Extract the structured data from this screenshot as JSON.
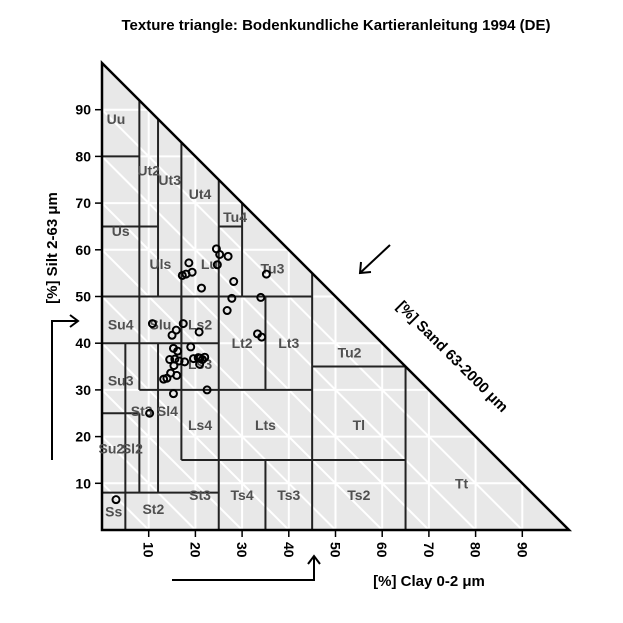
{
  "chart_data": {
    "type": "scatter",
    "title": "Texture triangle: Bodenkundliche Kartieranleitung 1994 (DE)",
    "xlabel": "[%] Clay 0-2 μm",
    "ylabel": "[%] Silt 2-63 μm",
    "zlabel": "[%] Sand 63-2000 μm",
    "xlim": [
      0,
      100
    ],
    "ylim": [
      0,
      100
    ],
    "x_ticks": [
      "10",
      "20",
      "30",
      "40",
      "50",
      "60",
      "70",
      "80",
      "90"
    ],
    "y_ticks": [
      "10",
      "20",
      "30",
      "40",
      "50",
      "60",
      "70",
      "80",
      "90"
    ],
    "grid": true,
    "classes": [
      {
        "label": "Uu",
        "clay": 3,
        "silt": 88
      },
      {
        "label": "Ut2",
        "clay": 10,
        "silt": 77
      },
      {
        "label": "Ut3",
        "clay": 14.5,
        "silt": 75
      },
      {
        "label": "Ut4",
        "clay": 21,
        "silt": 72
      },
      {
        "label": "Tu4",
        "clay": 28.5,
        "silt": 67
      },
      {
        "label": "Us",
        "clay": 4,
        "silt": 64
      },
      {
        "label": "Uls",
        "clay": 12.5,
        "silt": 57
      },
      {
        "label": "Lu",
        "clay": 23,
        "silt": 57
      },
      {
        "label": "Tu3",
        "clay": 36.5,
        "silt": 56
      },
      {
        "label": "Su4",
        "clay": 4,
        "silt": 44
      },
      {
        "label": "Slu",
        "clay": 12.5,
        "silt": 44
      },
      {
        "label": "Ls2",
        "clay": 21,
        "silt": 44
      },
      {
        "label": "Lt2",
        "clay": 30,
        "silt": 40
      },
      {
        "label": "Lt3",
        "clay": 40,
        "silt": 40
      },
      {
        "label": "Tu2",
        "clay": 53,
        "silt": 38
      },
      {
        "label": "Ls3",
        "clay": 21,
        "silt": 35.5
      },
      {
        "label": "Su3",
        "clay": 4,
        "silt": 32
      },
      {
        "label": "St3",
        "clay": 8.5,
        "silt": 25.5
      },
      {
        "label": "Sl4",
        "clay": 14,
        "silt": 25.5
      },
      {
        "label": "Ls4",
        "clay": 21,
        "silt": 22.5
      },
      {
        "label": "Lts",
        "clay": 35,
        "silt": 22.5
      },
      {
        "label": "Tl",
        "clay": 55,
        "silt": 22.5
      },
      {
        "label": "Su2",
        "clay": 2,
        "silt": 17.5
      },
      {
        "label": "Sl2",
        "clay": 6.5,
        "silt": 17.5
      },
      {
        "label": "Tt",
        "clay": 77,
        "silt": 10
      },
      {
        "label": "St3",
        "clay": 21,
        "silt": 7.5
      },
      {
        "label": "Ts4",
        "clay": 30,
        "silt": 7.5
      },
      {
        "label": "Ts3",
        "clay": 40,
        "silt": 7.5
      },
      {
        "label": "Ts2",
        "clay": 55,
        "silt": 7.5
      },
      {
        "label": "Ss",
        "clay": 2.5,
        "silt": 4
      },
      {
        "label": "St2",
        "clay": 11,
        "silt": 4.5
      }
    ],
    "points": [
      {
        "clay": 3,
        "silt": 6.5
      },
      {
        "clay": 10.2,
        "silt": 25
      },
      {
        "clay": 10.8,
        "silt": 44.2
      },
      {
        "clay": 13.2,
        "silt": 32.3
      },
      {
        "clay": 13.9,
        "silt": 32.5
      },
      {
        "clay": 14.7,
        "silt": 33.6
      },
      {
        "clay": 14.5,
        "silt": 36.5
      },
      {
        "clay": 15,
        "silt": 41.7
      },
      {
        "clay": 15.3,
        "silt": 38.9
      },
      {
        "clay": 15.6,
        "silt": 36.6
      },
      {
        "clay": 15.4,
        "silt": 35.2
      },
      {
        "clay": 15.3,
        "silt": 29.2
      },
      {
        "clay": 15.9,
        "silt": 42.8
      },
      {
        "clay": 16,
        "silt": 33.1
      },
      {
        "clay": 16.2,
        "silt": 38.3
      },
      {
        "clay": 16.5,
        "silt": 36.2
      },
      {
        "clay": 17.4,
        "silt": 44.2
      },
      {
        "clay": 17.7,
        "silt": 36
      },
      {
        "clay": 17.2,
        "silt": 54.5
      },
      {
        "clay": 18,
        "silt": 54.8
      },
      {
        "clay": 18.6,
        "silt": 57.2
      },
      {
        "clay": 19,
        "silt": 39.2
      },
      {
        "clay": 19.3,
        "silt": 55.2
      },
      {
        "clay": 19.6,
        "silt": 36.7
      },
      {
        "clay": 20.6,
        "silt": 36.9
      },
      {
        "clay": 20.8,
        "silt": 42.4
      },
      {
        "clay": 20.9,
        "silt": 35.5
      },
      {
        "clay": 21,
        "silt": 36.8
      },
      {
        "clay": 21.3,
        "silt": 51.8
      },
      {
        "clay": 21.5,
        "silt": 36.5
      },
      {
        "clay": 22,
        "silt": 37
      },
      {
        "clay": 22.5,
        "silt": 30
      },
      {
        "clay": 24.5,
        "silt": 60.2
      },
      {
        "clay": 24.7,
        "silt": 56.8
      },
      {
        "clay": 25.2,
        "silt": 59
      },
      {
        "clay": 26.8,
        "silt": 47
      },
      {
        "clay": 27,
        "silt": 58.6
      },
      {
        "clay": 27.8,
        "silt": 49.6
      },
      {
        "clay": 28.2,
        "silt": 53.2
      },
      {
        "clay": 33.3,
        "silt": 42
      },
      {
        "clay": 34,
        "silt": 49.8
      },
      {
        "clay": 34.2,
        "silt": 41.3
      },
      {
        "clay": 35.2,
        "silt": 54.8
      }
    ]
  }
}
